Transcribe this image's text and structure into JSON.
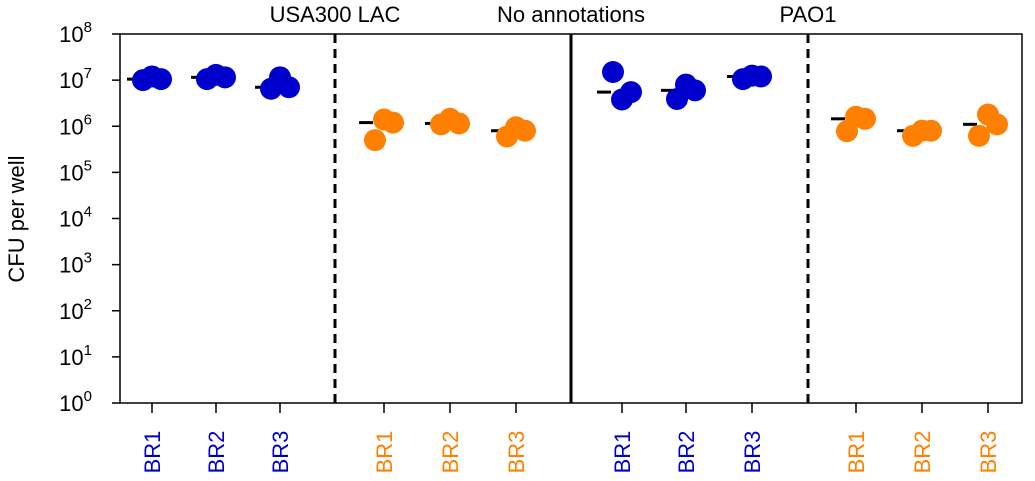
{
  "chart_data": {
    "type": "scatter",
    "ylabel": "CFU per well",
    "yscale": "log",
    "ylim": [
      1,
      100000000
    ],
    "ytick_base": "10",
    "ytick_exponents": [
      "0",
      "1",
      "2",
      "3",
      "4",
      "5",
      "6",
      "7",
      "8"
    ],
    "group_titles": [
      "USA300 LAC",
      "No annotations",
      "PAO1"
    ],
    "colors": {
      "blue": "#0000cc",
      "orange": "#ff8000"
    },
    "categories": [
      {
        "label": "BR1",
        "color": "blue",
        "points": [
          10000000,
          12000000,
          10500000
        ],
        "median": 10500000
      },
      {
        "label": "BR2",
        "color": "blue",
        "points": [
          10500000,
          13000000,
          11500000
        ],
        "median": 11500000
      },
      {
        "label": "BR3",
        "color": "blue",
        "points": [
          6500000,
          11500000,
          7000000
        ],
        "median": 7000000
      },
      {
        "label": "BR1",
        "color": "orange",
        "points": [
          500000,
          1400000,
          1200000
        ],
        "median": 1200000
      },
      {
        "label": "BR2",
        "color": "orange",
        "points": [
          1100000,
          1450000,
          1150000
        ],
        "median": 1150000
      },
      {
        "label": "BR3",
        "color": "orange",
        "points": [
          600000,
          950000,
          800000
        ],
        "median": 800000
      },
      {
        "label": "BR1",
        "color": "blue",
        "points": [
          15000000,
          3800000,
          5500000
        ],
        "median": 5500000
      },
      {
        "label": "BR2",
        "color": "blue",
        "points": [
          3900000,
          8000000,
          6000000
        ],
        "median": 6000000
      },
      {
        "label": "BR3",
        "color": "blue",
        "points": [
          10500000,
          12500000,
          12000000
        ],
        "median": 12000000
      },
      {
        "label": "BR1",
        "color": "orange",
        "points": [
          780000,
          1600000,
          1450000
        ],
        "median": 1450000
      },
      {
        "label": "BR2",
        "color": "orange",
        "points": [
          620000,
          800000,
          800000
        ],
        "median": 800000
      },
      {
        "label": "BR3",
        "color": "orange",
        "points": [
          620000,
          1800000,
          1100000
        ],
        "median": 1100000
      }
    ],
    "grid": false
  }
}
